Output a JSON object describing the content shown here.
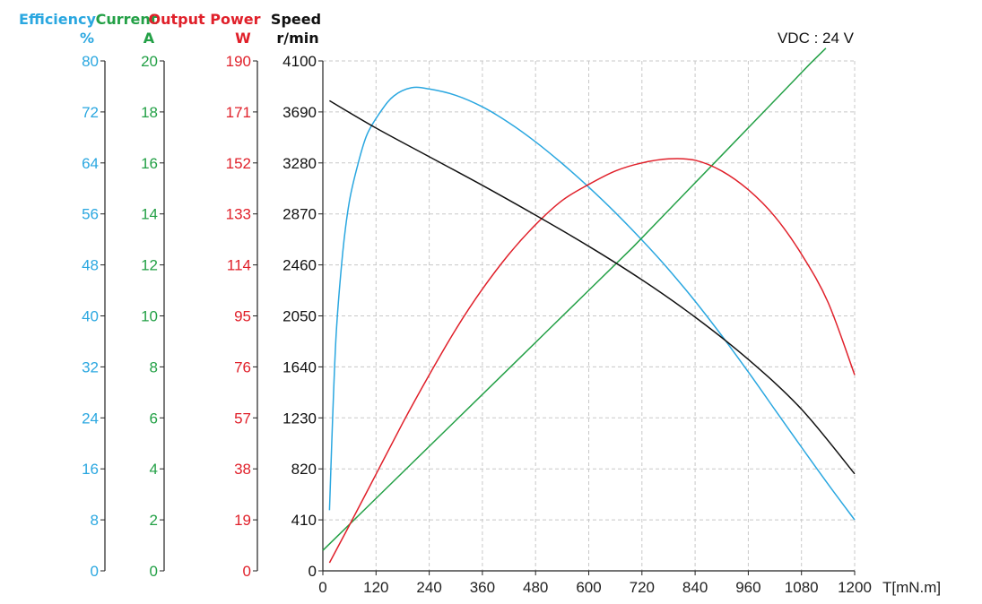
{
  "chart_data": {
    "type": "line",
    "note_vdc": "VDC : 24 V",
    "grid": true,
    "x": {
      "label": "T[mN.m]",
      "min": 0,
      "max": 1200,
      "ticks": [
        0,
        120,
        240,
        360,
        480,
        600,
        720,
        840,
        960,
        1080,
        1200
      ]
    },
    "axes": [
      {
        "id": "efficiency",
        "title": "Efficiency",
        "unit": "%",
        "color": "#2aa7e0",
        "min": 0,
        "max": 80,
        "ticks": [
          0,
          8,
          16,
          24,
          32,
          40,
          48,
          56,
          64,
          72,
          80
        ]
      },
      {
        "id": "current",
        "title": "Current",
        "unit": "A",
        "color": "#23a046",
        "min": 0,
        "max": 20,
        "ticks": [
          0,
          2,
          4,
          6,
          8,
          10,
          12,
          14,
          16,
          18,
          20
        ]
      },
      {
        "id": "power",
        "title": "Output Power",
        "unit": "W",
        "color": "#e0202a",
        "min": 0,
        "max": 190,
        "ticks": [
          0,
          19,
          38,
          57,
          76,
          95,
          114,
          133,
          152,
          171,
          190
        ]
      },
      {
        "id": "speed",
        "title": "Speed",
        "unit": "r/min",
        "color": "#111111",
        "min": 0,
        "max": 4100,
        "ticks": [
          0,
          410,
          820,
          1230,
          1640,
          2050,
          2460,
          2870,
          3280,
          3690,
          4100
        ]
      }
    ],
    "series": [
      {
        "axis": "efficiency",
        "color": "#2aa7e0",
        "points": [
          [
            15,
            9.5
          ],
          [
            20,
            20
          ],
          [
            30,
            37
          ],
          [
            45,
            50
          ],
          [
            60,
            58
          ],
          [
            80,
            64
          ],
          [
            100,
            68.5
          ],
          [
            130,
            72
          ],
          [
            160,
            74.5
          ],
          [
            200,
            75.8
          ],
          [
            240,
            75.6
          ],
          [
            300,
            74.6
          ],
          [
            360,
            72.8
          ],
          [
            420,
            70.3
          ],
          [
            480,
            67.3
          ],
          [
            540,
            63.9
          ],
          [
            600,
            60.2
          ],
          [
            660,
            56.2
          ],
          [
            720,
            51.9
          ],
          [
            780,
            47.3
          ],
          [
            840,
            42.3
          ],
          [
            900,
            36.9
          ],
          [
            960,
            31.2
          ],
          [
            1020,
            25.3
          ],
          [
            1080,
            19.4
          ],
          [
            1140,
            13.6
          ],
          [
            1200,
            8
          ]
        ]
      },
      {
        "axis": "current",
        "color": "#23a046",
        "points": [
          [
            0,
            0.8
          ],
          [
            100,
            2.5
          ],
          [
            200,
            4.2
          ],
          [
            300,
            5.9
          ],
          [
            400,
            7.6
          ],
          [
            500,
            9.3
          ],
          [
            600,
            11.0
          ],
          [
            700,
            12.7
          ],
          [
            800,
            14.5
          ],
          [
            900,
            16.3
          ],
          [
            1000,
            18.1
          ],
          [
            1100,
            19.9
          ],
          [
            1135,
            20.5
          ]
        ]
      },
      {
        "axis": "power",
        "color": "#e0202a",
        "points": [
          [
            15,
            3
          ],
          [
            60,
            17
          ],
          [
            120,
            36
          ],
          [
            180,
            55
          ],
          [
            240,
            73
          ],
          [
            300,
            90
          ],
          [
            360,
            105
          ],
          [
            420,
            118
          ],
          [
            480,
            129
          ],
          [
            540,
            138
          ],
          [
            600,
            144
          ],
          [
            660,
            149
          ],
          [
            720,
            152
          ],
          [
            780,
            153.5
          ],
          [
            840,
            153
          ],
          [
            900,
            149
          ],
          [
            960,
            142
          ],
          [
            1020,
            132
          ],
          [
            1080,
            118
          ],
          [
            1140,
            100
          ],
          [
            1200,
            73
          ]
        ]
      },
      {
        "axis": "speed",
        "color": "#111111",
        "points": [
          [
            15,
            3780
          ],
          [
            120,
            3560
          ],
          [
            240,
            3330
          ],
          [
            360,
            3100
          ],
          [
            480,
            2860
          ],
          [
            600,
            2610
          ],
          [
            720,
            2340
          ],
          [
            840,
            2040
          ],
          [
            960,
            1700
          ],
          [
            1080,
            1300
          ],
          [
            1200,
            780
          ]
        ]
      }
    ]
  }
}
